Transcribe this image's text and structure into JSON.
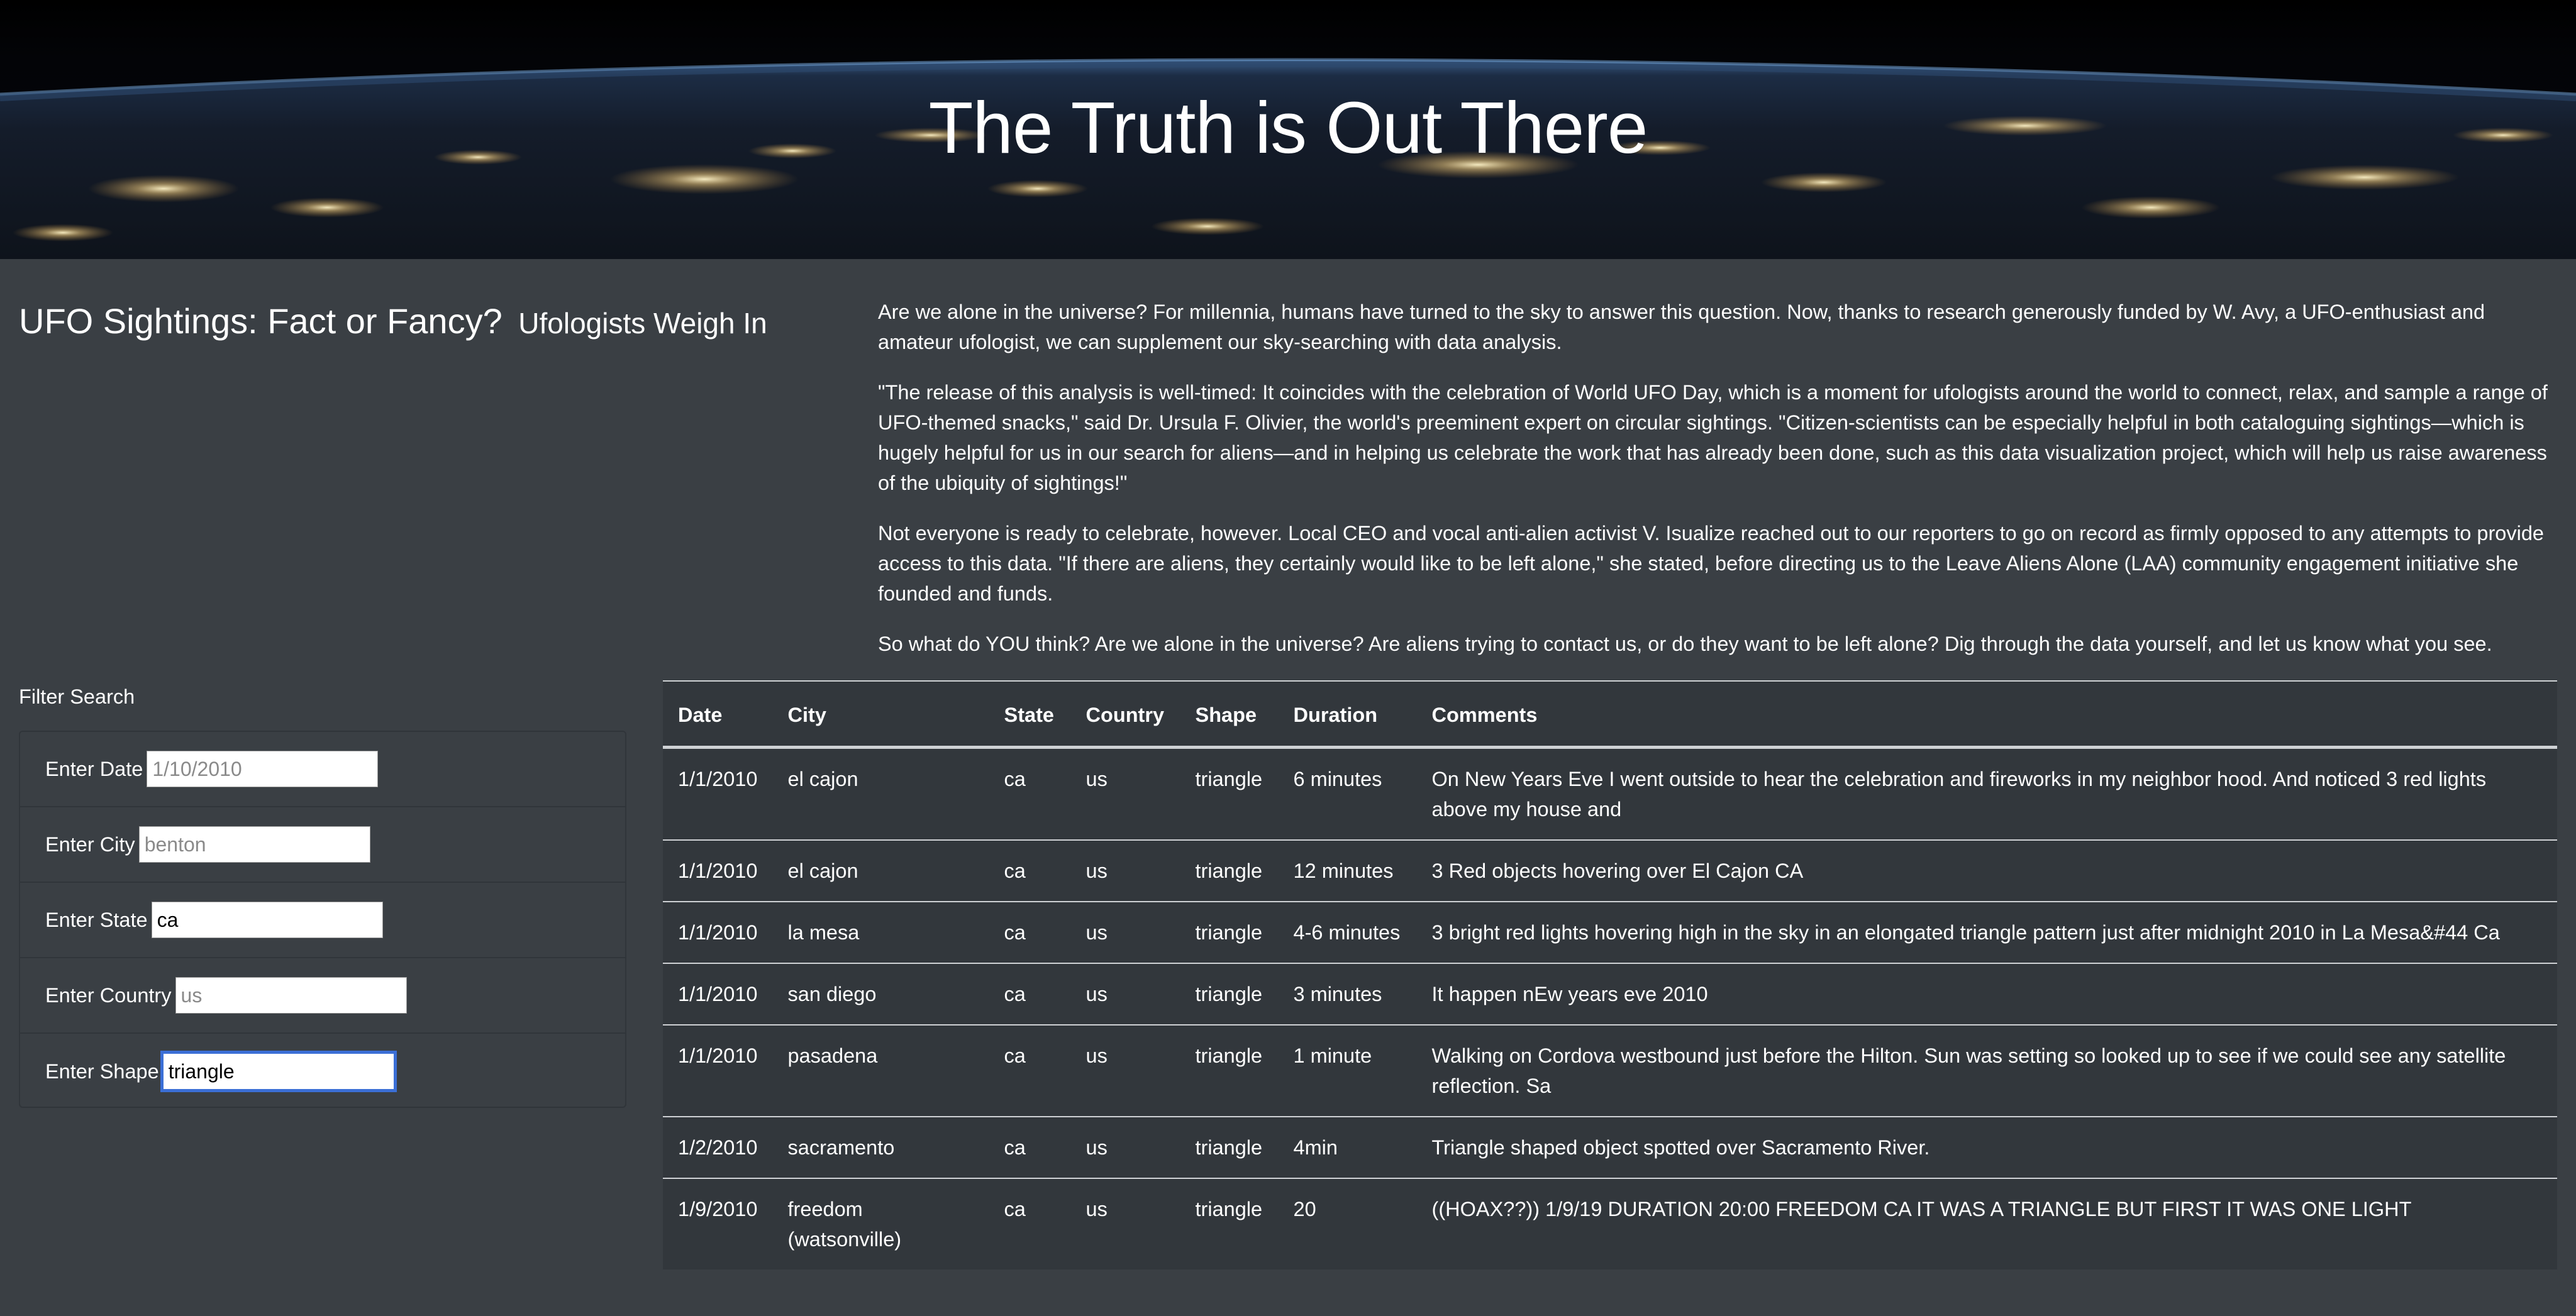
{
  "hero": {
    "title": "The Truth is Out There"
  },
  "heading": {
    "main": "UFO Sightings: Fact or Fancy?",
    "sub": "Ufologists Weigh In"
  },
  "article": {
    "paragraphs": [
      "Are we alone in the universe? For millennia, humans have turned to the sky to answer this question. Now, thanks to research generously funded by W. Avy, a UFO-enthusiast and amateur ufologist, we can supplement our sky-searching with data analysis.",
      "\"The release of this analysis is well-timed: It coincides with the celebration of World UFO Day, which is a moment for ufologists around the world to connect, relax, and sample a range of UFO-themed snacks,\" said Dr. Ursula F. Olivier, the world's preeminent expert on circular sightings. \"Citizen-scientists can be especially helpful in both cataloguing sightings—which is hugely helpful for us in our search for aliens—and in helping us celebrate the work that has already been done, such as this data visualization project, which will help us raise awareness of the ubiquity of sightings!\"",
      "Not everyone is ready to celebrate, however. Local CEO and vocal anti-alien activist V. Isualize reached out to our reporters to go on record as firmly opposed to any attempts to provide access to this data. \"If there are aliens, they certainly would like to be left alone,\" she stated, before directing us to the Leave Aliens Alone (LAA) community engagement initiative she founded and funds.",
      "So what do YOU think? Are we alone in the universe? Are aliens trying to contact us, or do they want to be left alone? Dig through the data yourself, and let us know what you see."
    ]
  },
  "filters": {
    "title": "Filter Search",
    "date": {
      "label": "Enter Date",
      "value": "",
      "placeholder": "1/10/2010"
    },
    "city": {
      "label": "Enter City",
      "value": "",
      "placeholder": "benton"
    },
    "state": {
      "label": "Enter State",
      "value": "ca",
      "placeholder": ""
    },
    "country": {
      "label": "Enter Country",
      "value": "",
      "placeholder": "us"
    },
    "shape": {
      "label": "Enter Shape",
      "value": "triangle",
      "placeholder": ""
    }
  },
  "table": {
    "headers": [
      "Date",
      "City",
      "State",
      "Country",
      "Shape",
      "Duration",
      "Comments"
    ],
    "rows": [
      [
        "1/1/2010",
        "el cajon",
        "ca",
        "us",
        "triangle",
        "6 minutes",
        "On New Years Eve I went outside to hear the celebration and fireworks in my neighbor hood. And noticed 3 red lights above my house and"
      ],
      [
        "1/1/2010",
        "el cajon",
        "ca",
        "us",
        "triangle",
        "12 minutes",
        "3 Red objects hovering over El Cajon CA"
      ],
      [
        "1/1/2010",
        "la mesa",
        "ca",
        "us",
        "triangle",
        "4-6 minutes",
        "3 bright red lights hovering high in the sky in an elongated triangle pattern just after midnight 2010 in La Mesa&#44 Ca"
      ],
      [
        "1/1/2010",
        "san diego",
        "ca",
        "us",
        "triangle",
        "3 minutes",
        "It happen nEw years eve 2010"
      ],
      [
        "1/1/2010",
        "pasadena",
        "ca",
        "us",
        "triangle",
        "1 minute",
        "Walking on Cordova westbound just before the Hilton. Sun was setting so looked up to see if we could see any satellite reflection. Sa"
      ],
      [
        "1/2/2010",
        "sacramento",
        "ca",
        "us",
        "triangle",
        "4min",
        "Triangle shaped object spotted over Sacramento River."
      ],
      [
        "1/9/2010",
        "freedom (watsonville)",
        "ca",
        "us",
        "triangle",
        "20",
        "((HOAX??)) 1/9/19 DURATION 20:00 FREEDOM CA IT WAS A TRIANGLE BUT FIRST IT WAS ONE LIGHT"
      ]
    ]
  }
}
